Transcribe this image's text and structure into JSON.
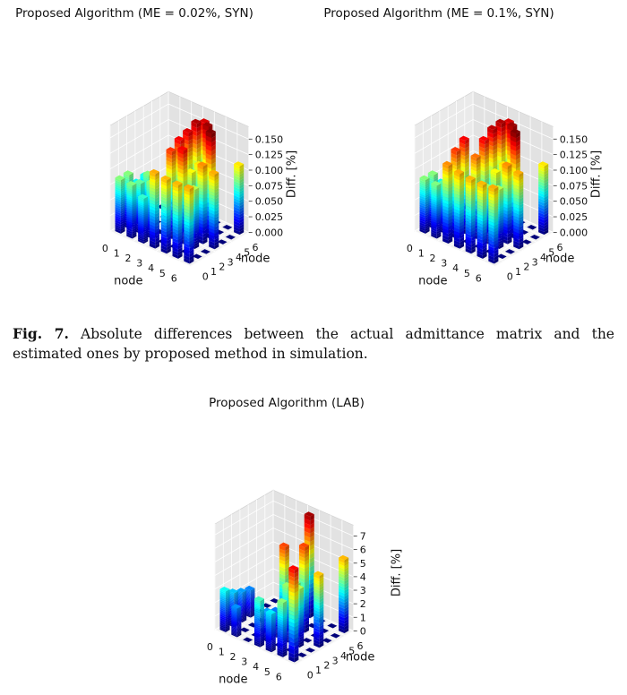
{
  "caption": {
    "label": "Fig. 7.",
    "text": "Absolute differences between the actual admittance matrix and the estimated ones by proposed method in simulation."
  },
  "chart_data": [
    {
      "id": "syn002",
      "type": "bar3d",
      "title": "Proposed Algorithm (ME = 0.02%, SYN)",
      "xlabel": "node",
      "ylabel": "node",
      "zlabel": "Diff. [%]",
      "xticks": [
        "0",
        "1",
        "2",
        "3",
        "4",
        "5",
        "6"
      ],
      "yticks": [
        "0",
        "1",
        "2",
        "3",
        "4",
        "5",
        "6"
      ],
      "zticks": [
        "0.000",
        "0.025",
        "0.050",
        "0.075",
        "0.100",
        "0.125",
        "0.150"
      ],
      "zlim": [
        0,
        0.17
      ],
      "bars": [
        {
          "x": 0,
          "y": 0,
          "z": 0.086
        },
        {
          "x": 0,
          "y": 1,
          "z": 0.086
        },
        {
          "x": 0,
          "y": 2,
          "z": 0.065
        },
        {
          "x": 0,
          "y": 3,
          "z": 0.068
        },
        {
          "x": 1,
          "y": 0,
          "z": 0.085
        },
        {
          "x": 1,
          "y": 1,
          "z": 0.08
        },
        {
          "x": 1,
          "y": 2,
          "z": 0.086
        },
        {
          "x": 2,
          "y": 0,
          "z": 0.072
        },
        {
          "x": 2,
          "y": 1,
          "z": 0.088
        },
        {
          "x": 3,
          "y": 0,
          "z": 0.12
        },
        {
          "x": 3,
          "y": 2,
          "z": 0.14
        },
        {
          "x": 3,
          "y": 3,
          "z": 0.15
        },
        {
          "x": 3,
          "y": 4,
          "z": 0.155
        },
        {
          "x": 3,
          "y": 5,
          "z": 0.162
        },
        {
          "x": 3,
          "y": 6,
          "z": 0.155
        },
        {
          "x": 4,
          "y": 0,
          "z": 0.118
        },
        {
          "x": 4,
          "y": 2,
          "z": 0.15
        },
        {
          "x": 4,
          "y": 3,
          "z": 0.106
        },
        {
          "x": 4,
          "y": 4,
          "z": 0.11
        },
        {
          "x": 4,
          "y": 5,
          "z": 0.165
        },
        {
          "x": 5,
          "y": 0,
          "z": 0.118
        },
        {
          "x": 5,
          "y": 2,
          "z": 0.095
        },
        {
          "x": 5,
          "y": 3,
          "z": 0.125
        },
        {
          "x": 5,
          "y": 4,
          "z": 0.17
        },
        {
          "x": 6,
          "y": 0,
          "z": 0.12
        },
        {
          "x": 6,
          "y": 3,
          "z": 0.12
        },
        {
          "x": 6,
          "y": 6,
          "z": 0.11
        }
      ]
    },
    {
      "id": "syn01",
      "type": "bar3d",
      "title": "Proposed Algorithm (ME = 0.1%, SYN)",
      "xlabel": "node",
      "ylabel": "node",
      "zlabel": "Diff. [%]",
      "xticks": [
        "0",
        "1",
        "2",
        "3",
        "4",
        "5",
        "6"
      ],
      "yticks": [
        "0",
        "1",
        "2",
        "3",
        "4",
        "5",
        "6"
      ],
      "zticks": [
        "0.000",
        "0.025",
        "0.050",
        "0.075",
        "0.100",
        "0.125",
        "0.150"
      ],
      "zlim": [
        0,
        0.17
      ],
      "bars": [
        {
          "x": 0,
          "y": 0,
          "z": 0.086
        },
        {
          "x": 0,
          "y": 1,
          "z": 0.086
        },
        {
          "x": 0,
          "y": 2,
          "z": 0.065
        },
        {
          "x": 0,
          "y": 3,
          "z": 0.068
        },
        {
          "x": 1,
          "y": 0,
          "z": 0.085
        },
        {
          "x": 1,
          "y": 1,
          "z": 0.08
        },
        {
          "x": 1,
          "y": 2,
          "z": 0.086
        },
        {
          "x": 2,
          "y": 0,
          "z": 0.125
        },
        {
          "x": 2,
          "y": 1,
          "z": 0.14
        },
        {
          "x": 2,
          "y": 2,
          "z": 0.15
        },
        {
          "x": 3,
          "y": 0,
          "z": 0.12
        },
        {
          "x": 3,
          "y": 2,
          "z": 0.13
        },
        {
          "x": 3,
          "y": 3,
          "z": 0.15
        },
        {
          "x": 3,
          "y": 4,
          "z": 0.16
        },
        {
          "x": 3,
          "y": 5,
          "z": 0.162
        },
        {
          "x": 3,
          "y": 6,
          "z": 0.155
        },
        {
          "x": 4,
          "y": 0,
          "z": 0.118
        },
        {
          "x": 4,
          "y": 2,
          "z": 0.09
        },
        {
          "x": 4,
          "y": 3,
          "z": 0.106
        },
        {
          "x": 4,
          "y": 4,
          "z": 0.11
        },
        {
          "x": 4,
          "y": 5,
          "z": 0.165
        },
        {
          "x": 5,
          "y": 0,
          "z": 0.118
        },
        {
          "x": 5,
          "y": 2,
          "z": 0.095
        },
        {
          "x": 5,
          "y": 3,
          "z": 0.125
        },
        {
          "x": 5,
          "y": 4,
          "z": 0.17
        },
        {
          "x": 6,
          "y": 0,
          "z": 0.12
        },
        {
          "x": 6,
          "y": 3,
          "z": 0.12
        },
        {
          "x": 6,
          "y": 6,
          "z": 0.11
        }
      ]
    },
    {
      "id": "lab",
      "type": "bar3d",
      "title": "Proposed Algorithm (LAB)",
      "xlabel": "node",
      "ylabel": "node",
      "zlabel": "Diff. [%]",
      "xticks": [
        "0",
        "1",
        "2",
        "3",
        "4",
        "5",
        "6"
      ],
      "yticks": [
        "0",
        "1",
        "2",
        "3",
        "4",
        "5",
        "6"
      ],
      "zticks": [
        "0",
        "1",
        "2",
        "3",
        "4",
        "5",
        "6",
        "7"
      ],
      "zlim": [
        0,
        7.8
      ],
      "bars": [
        {
          "x": 0,
          "y": 0,
          "z": 3.0
        },
        {
          "x": 0,
          "y": 1,
          "z": 2.5
        },
        {
          "x": 0,
          "y": 2,
          "z": 2.2
        },
        {
          "x": 0,
          "y": 3,
          "z": 2.0
        },
        {
          "x": 1,
          "y": 0,
          "z": 2.1
        },
        {
          "x": 3,
          "y": 0,
          "z": 3.4
        },
        {
          "x": 3,
          "y": 1,
          "z": 2.2
        },
        {
          "x": 3,
          "y": 2,
          "z": 1.9
        },
        {
          "x": 3,
          "y": 3,
          "z": 6.3
        },
        {
          "x": 3,
          "y": 6,
          "z": 7.5
        },
        {
          "x": 4,
          "y": 0,
          "z": 2.8
        },
        {
          "x": 4,
          "y": 2,
          "z": 4.1
        },
        {
          "x": 4,
          "y": 3,
          "z": 3.9
        },
        {
          "x": 4,
          "y": 4,
          "z": 6.3
        },
        {
          "x": 5,
          "y": 0,
          "z": 4.0
        },
        {
          "x": 5,
          "y": 2,
          "z": 4.3
        },
        {
          "x": 6,
          "y": 0,
          "z": 6.8
        },
        {
          "x": 6,
          "y": 3,
          "z": 5.3
        },
        {
          "x": 6,
          "y": 6,
          "z": 5.4
        }
      ]
    }
  ]
}
